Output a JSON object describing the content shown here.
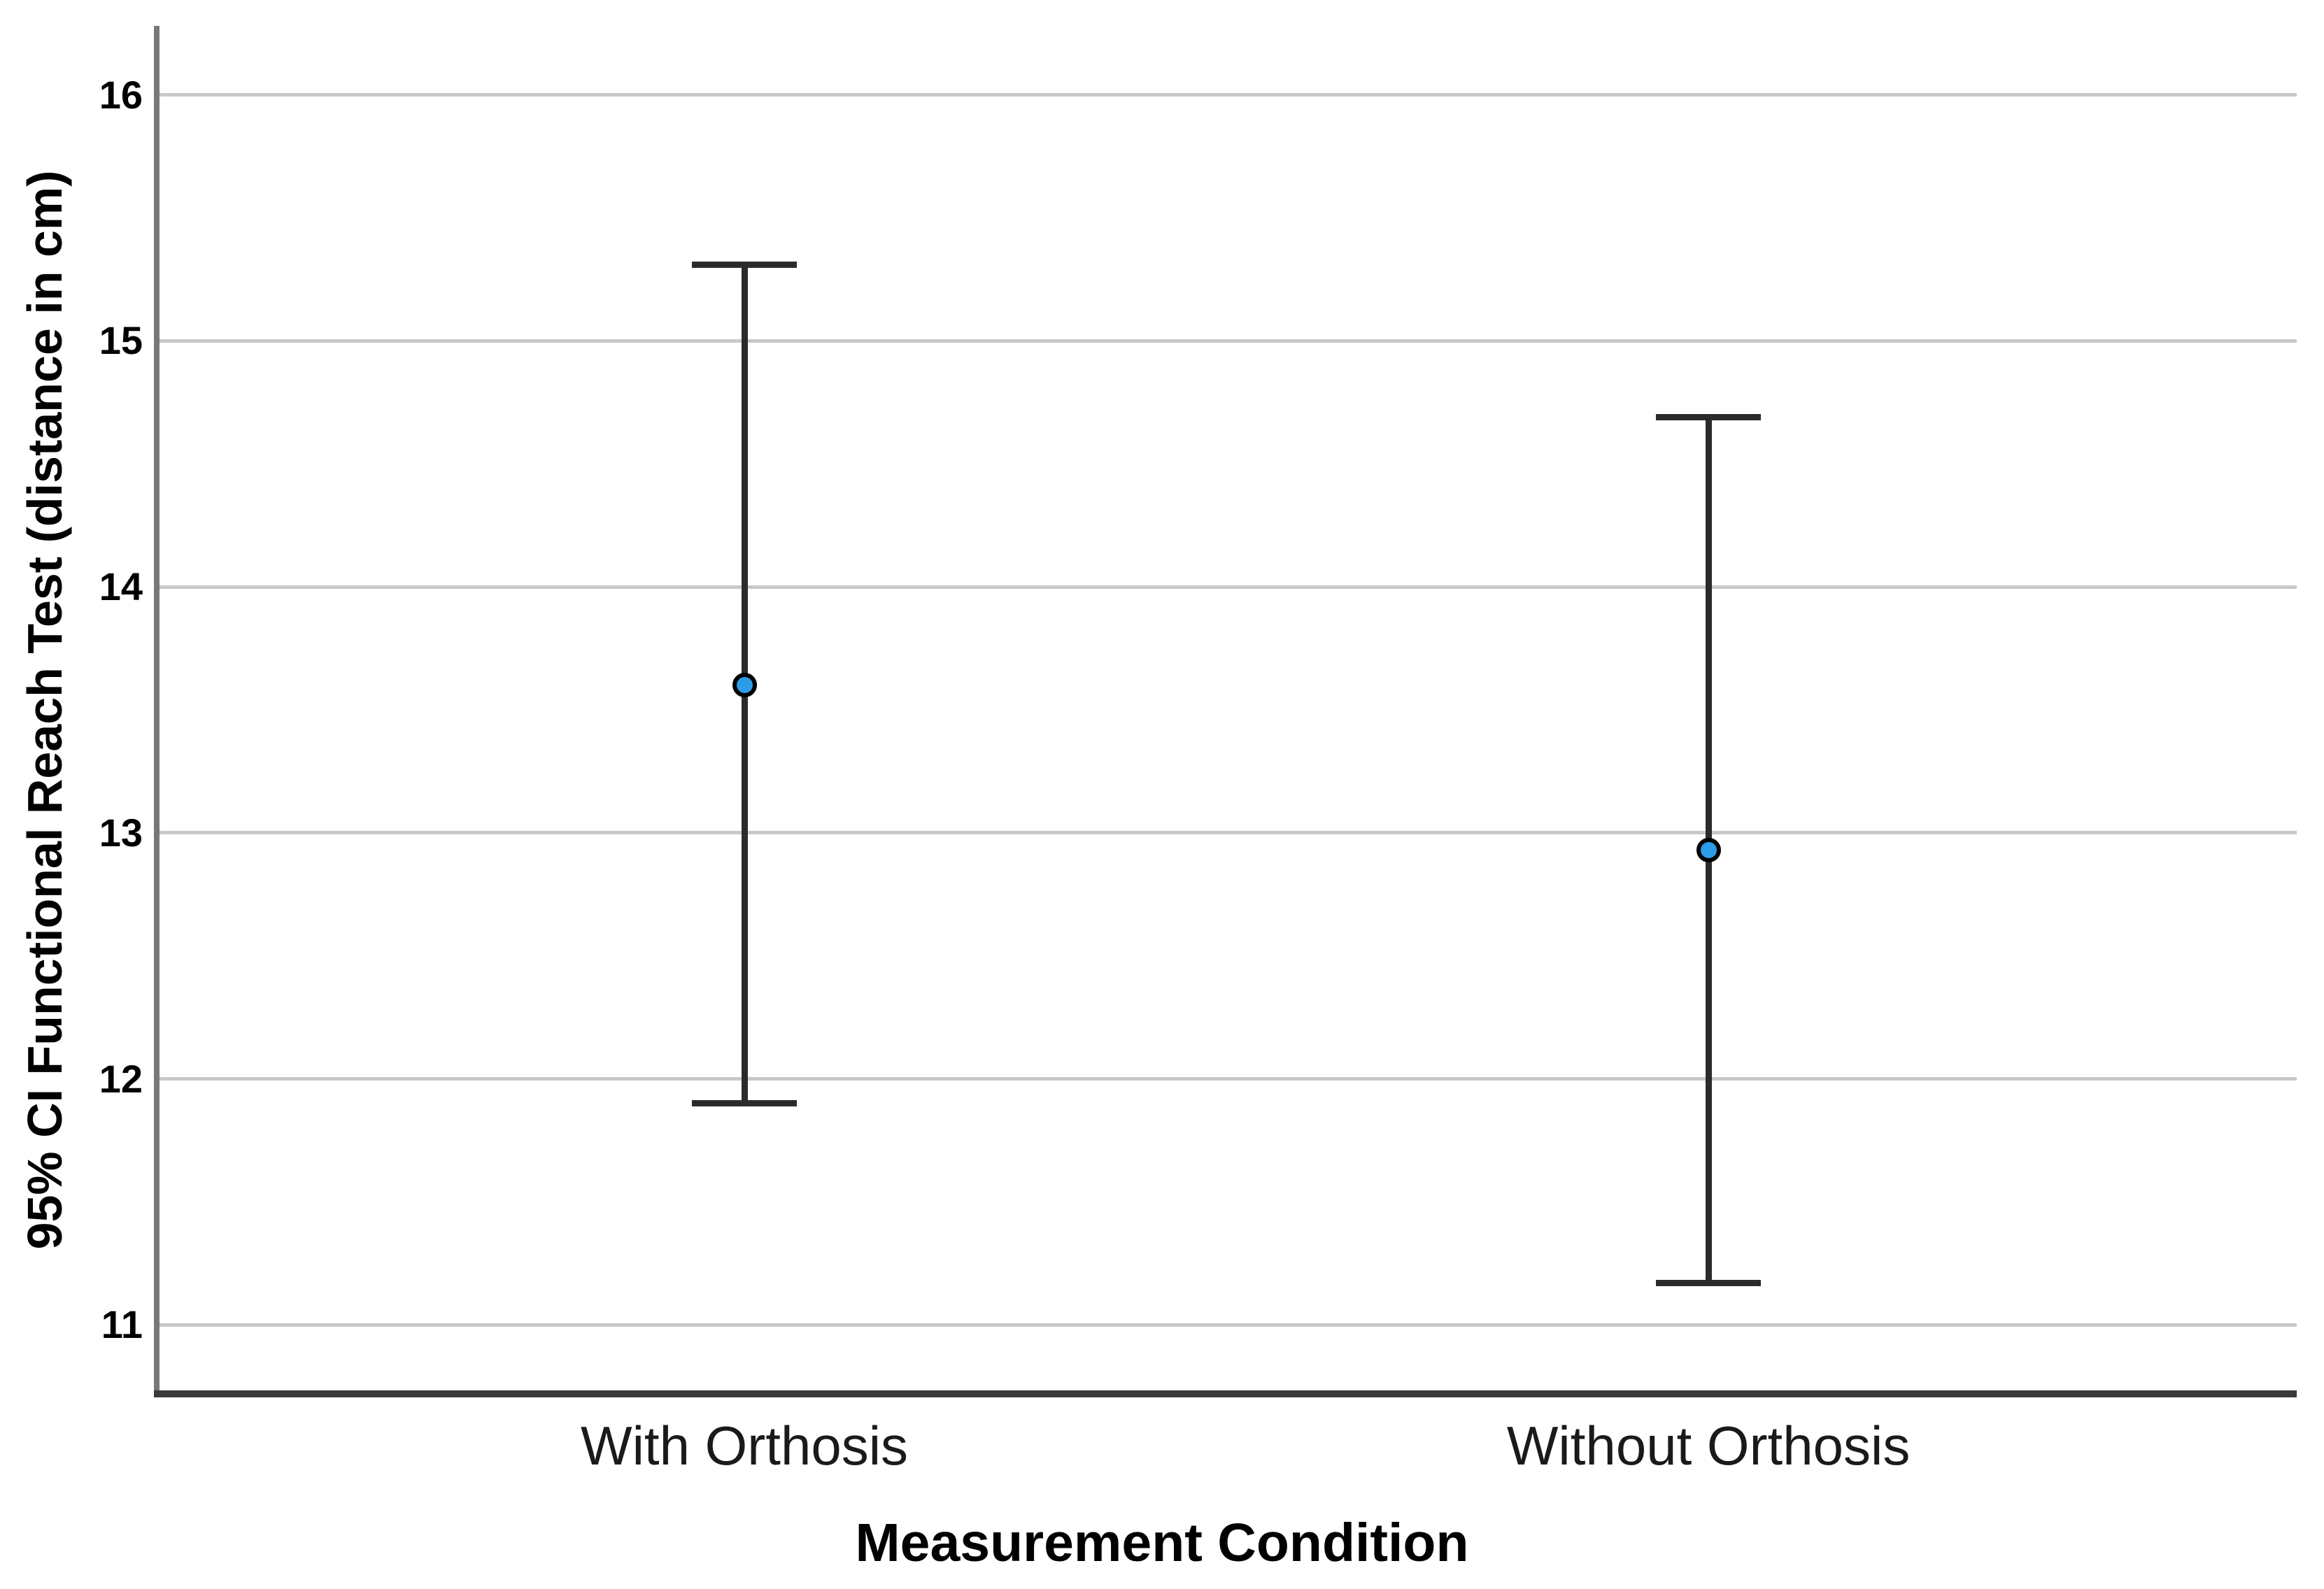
{
  "chart_data": {
    "type": "errorbar",
    "title": "",
    "categories": [
      "With Orthosis",
      "Without Orthosis"
    ],
    "series": [
      {
        "name": "95% CI Functional Reach Test",
        "points": [
          {
            "category": "With Orthosis",
            "mean": 13.6,
            "ci_low": 11.9,
            "ci_high": 15.31
          },
          {
            "category": "Without Orthosis",
            "mean": 12.93,
            "ci_low": 11.17,
            "ci_high": 14.69
          }
        ]
      }
    ],
    "xlabel": "Measurement Condition",
    "ylabel": "95% CI Functional Reach Test (distance in cm)",
    "yticks": [
      11,
      12,
      13,
      14,
      15,
      16
    ],
    "ylim": [
      10.72,
      16.28
    ],
    "grid": true,
    "legend": "none",
    "colors": {
      "marker_fill": "#2d9ce8",
      "marker_border": "#000000",
      "errorbar": "#2b2b2b",
      "gridline": "#c8c8c8",
      "y_axis_line": "#787878",
      "x_axis_line": "#3a3a3a",
      "text": "#000000"
    }
  }
}
